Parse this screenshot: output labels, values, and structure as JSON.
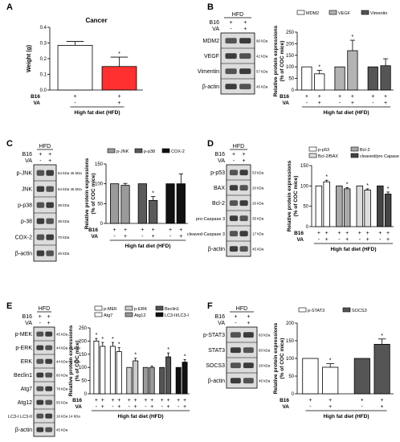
{
  "figure": {
    "panel_letters": [
      "A",
      "B",
      "C",
      "D",
      "E",
      "F"
    ],
    "plus": "+",
    "minus": "-",
    "b16": "B16",
    "va": "VA",
    "hfd": "HFD",
    "ylabel_rel": "Relative protein expressions",
    "ylabel_rel2": "(% of COC mice)",
    "xaxis_title": "High fat diet  (HFD)"
  },
  "blots": {
    "B": {
      "rows": [
        "MDM2",
        "VEGF",
        "Vimentin",
        "β-actin"
      ],
      "kda": [
        "90 kDa",
        "42 kDa",
        "57 kDa",
        "45 kDa"
      ]
    },
    "C": {
      "rows": [
        "p-JNK",
        "JNK",
        "p-p38",
        "p-38",
        "COX-2",
        "β-actin"
      ],
      "kda": [
        "54 kDa 46 kDa",
        "54 kDa 46 kDa",
        "38 kDa",
        "38 kDa",
        "70 kDa",
        "45 kDa"
      ]
    },
    "D": {
      "rows": [
        "p-p53",
        "BAX",
        "Bcl-2",
        "pro-Caspase 3",
        "cleaved-Caspase 3",
        "β-actin"
      ],
      "kda": [
        "53 kDa",
        "20 kDa",
        "26 kDa",
        "35 kDa",
        "17 kDa",
        "45 kDa"
      ]
    },
    "E": {
      "rows": [
        "p-MEK",
        "p-ERK",
        "ERK",
        "Beclin1",
        "Atg7",
        "Atg12",
        "LC3-I LC3-II",
        "β-actin"
      ],
      "kda": [
        "45 kDa",
        "44 kDa 42 kDa",
        "44 kDa 42 kDa",
        "60 kDa",
        "78 kDa",
        "55 kDa",
        "16 kDa 14 kDa",
        "45 kDa"
      ]
    },
    "F": {
      "rows": [
        "p-STAT3",
        "STAT3",
        "SOCS3",
        "β-actin"
      ],
      "kda": [
        "83 kDa",
        "83 kDa",
        "28 kDa",
        "45 kDa"
      ]
    }
  },
  "chart_data": [
    {
      "panel": "A",
      "type": "bar",
      "title": "Cancer",
      "ylabel": "Weight (g)",
      "ylim": [
        0,
        0.4
      ],
      "yticks": [
        0,
        0.1,
        0.2,
        0.3,
        0.4
      ],
      "ytick_labels": [
        "0.0",
        "0.1",
        "0.2",
        "0.3",
        "0.4"
      ],
      "categories": [
        "B16 +, VA -",
        "B16 +, VA +"
      ],
      "values": [
        0.285,
        0.15
      ],
      "errors": [
        0.025,
        0.06
      ],
      "colors": [
        "#ffffff",
        "#ff3030"
      ],
      "significant": [
        false,
        true
      ],
      "xlabel": "High fat diet (HFD)"
    },
    {
      "panel": "B",
      "type": "bar",
      "ylim": [
        0,
        250
      ],
      "yticks": [
        0,
        50,
        100,
        150,
        200,
        250
      ],
      "legend": [
        "MDM2",
        "VEGF",
        "Vimentin"
      ],
      "series": [
        {
          "name": "MDM2",
          "values": [
            100,
            70
          ],
          "errors": [
            0,
            15
          ],
          "color": "#ffffff",
          "significant": [
            false,
            true
          ]
        },
        {
          "name": "VEGF",
          "values": [
            100,
            170
          ],
          "errors": [
            0,
            45
          ],
          "color": "#b3b3b3",
          "significant": [
            false,
            true
          ]
        },
        {
          "name": "Vimentin",
          "values": [
            100,
            105
          ],
          "errors": [
            0,
            30
          ],
          "color": "#555555",
          "significant": [
            false,
            false
          ]
        }
      ]
    },
    {
      "panel": "C",
      "type": "bar",
      "ylim": [
        0,
        150
      ],
      "yticks": [
        0,
        50,
        100,
        150
      ],
      "legend": [
        "p-JNK",
        "p-p38",
        "COX-2"
      ],
      "series": [
        {
          "name": "p-JNK",
          "values": [
            100,
            96
          ],
          "errors": [
            0,
            5
          ],
          "color": "#9a9a9a",
          "significant": [
            false,
            false
          ]
        },
        {
          "name": "p-p38",
          "values": [
            100,
            58
          ],
          "errors": [
            0,
            10
          ],
          "color": "#5a5a5a",
          "significant": [
            false,
            true
          ]
        },
        {
          "name": "COX-2",
          "values": [
            100,
            100
          ],
          "errors": [
            0,
            25
          ],
          "color": "#111111",
          "significant": [
            false,
            false
          ]
        }
      ]
    },
    {
      "panel": "D",
      "type": "bar",
      "ylim": [
        0,
        150
      ],
      "yticks": [
        0,
        50,
        100,
        150
      ],
      "legend": [
        "p-p53",
        "Bcl-2",
        "Bcl-2/BAX",
        "cleaved/pro Capase 3"
      ],
      "series": [
        {
          "name": "p-p53",
          "values": [
            100,
            110
          ],
          "errors": [
            0,
            4
          ],
          "color": "#ffffff",
          "significant": [
            false,
            true
          ]
        },
        {
          "name": "Bcl-2",
          "values": [
            100,
            93
          ],
          "errors": [
            0,
            3
          ],
          "color": "#aaaaaa",
          "significant": [
            false,
            true
          ]
        },
        {
          "name": "Bcl-2/BAX",
          "values": [
            100,
            90
          ],
          "errors": [
            0,
            3
          ],
          "color": "#dddddd",
          "significant": [
            false,
            true
          ]
        },
        {
          "name": "cleaved/pro Capase 3",
          "values": [
            100,
            80
          ],
          "errors": [
            0,
            5
          ],
          "color": "#444444",
          "significant": [
            false,
            true
          ]
        }
      ]
    },
    {
      "panel": "E",
      "type": "bar",
      "ylim": [
        0,
        250
      ],
      "yticks": [
        0,
        50,
        100,
        150,
        200,
        250
      ],
      "legend": [
        "p-MEK",
        "p-ERK",
        "Beclin1",
        "Atg7",
        "Atg12",
        "LC3-II/LC3-I"
      ],
      "series": [
        {
          "name": "p-MEK",
          "values": [
            200,
            180
          ],
          "errors": [
            10,
            15
          ],
          "color": "#ffffff",
          "significant": [
            true,
            true
          ]
        },
        {
          "name": "Atg7",
          "values": [
            180,
            160
          ],
          "errors": [
            15,
            15
          ],
          "color": "#ffffff",
          "significant": [
            true,
            true
          ]
        },
        {
          "name": "p-ERK",
          "values": [
            100,
            125
          ],
          "errors": [
            0,
            10
          ],
          "color": "#cccccc",
          "significant": [
            false,
            true
          ]
        },
        {
          "name": "Atg12",
          "values": [
            100,
            100
          ],
          "errors": [
            0,
            5
          ],
          "color": "#999999",
          "significant": [
            false,
            false
          ]
        },
        {
          "name": "Beclin1",
          "values": [
            100,
            140
          ],
          "errors": [
            0,
            15
          ],
          "color": "#555555",
          "significant": [
            false,
            true
          ]
        },
        {
          "name": "LC3-II/LC3-I",
          "values": [
            100,
            120
          ],
          "errors": [
            0,
            10
          ],
          "color": "#111111",
          "significant": [
            false,
            true
          ]
        }
      ]
    },
    {
      "panel": "F",
      "type": "bar",
      "ylim": [
        0,
        200
      ],
      "yticks": [
        0,
        50,
        100,
        150,
        200
      ],
      "legend": [
        "p-STAT3",
        "SOCS3"
      ],
      "series": [
        {
          "name": "p-STAT3",
          "values": [
            100,
            75
          ],
          "errors": [
            0,
            10
          ],
          "color": "#ffffff",
          "significant": [
            false,
            true
          ]
        },
        {
          "name": "SOCS3",
          "values": [
            100,
            140
          ],
          "errors": [
            0,
            15
          ],
          "color": "#555555",
          "significant": [
            false,
            true
          ]
        }
      ]
    }
  ]
}
